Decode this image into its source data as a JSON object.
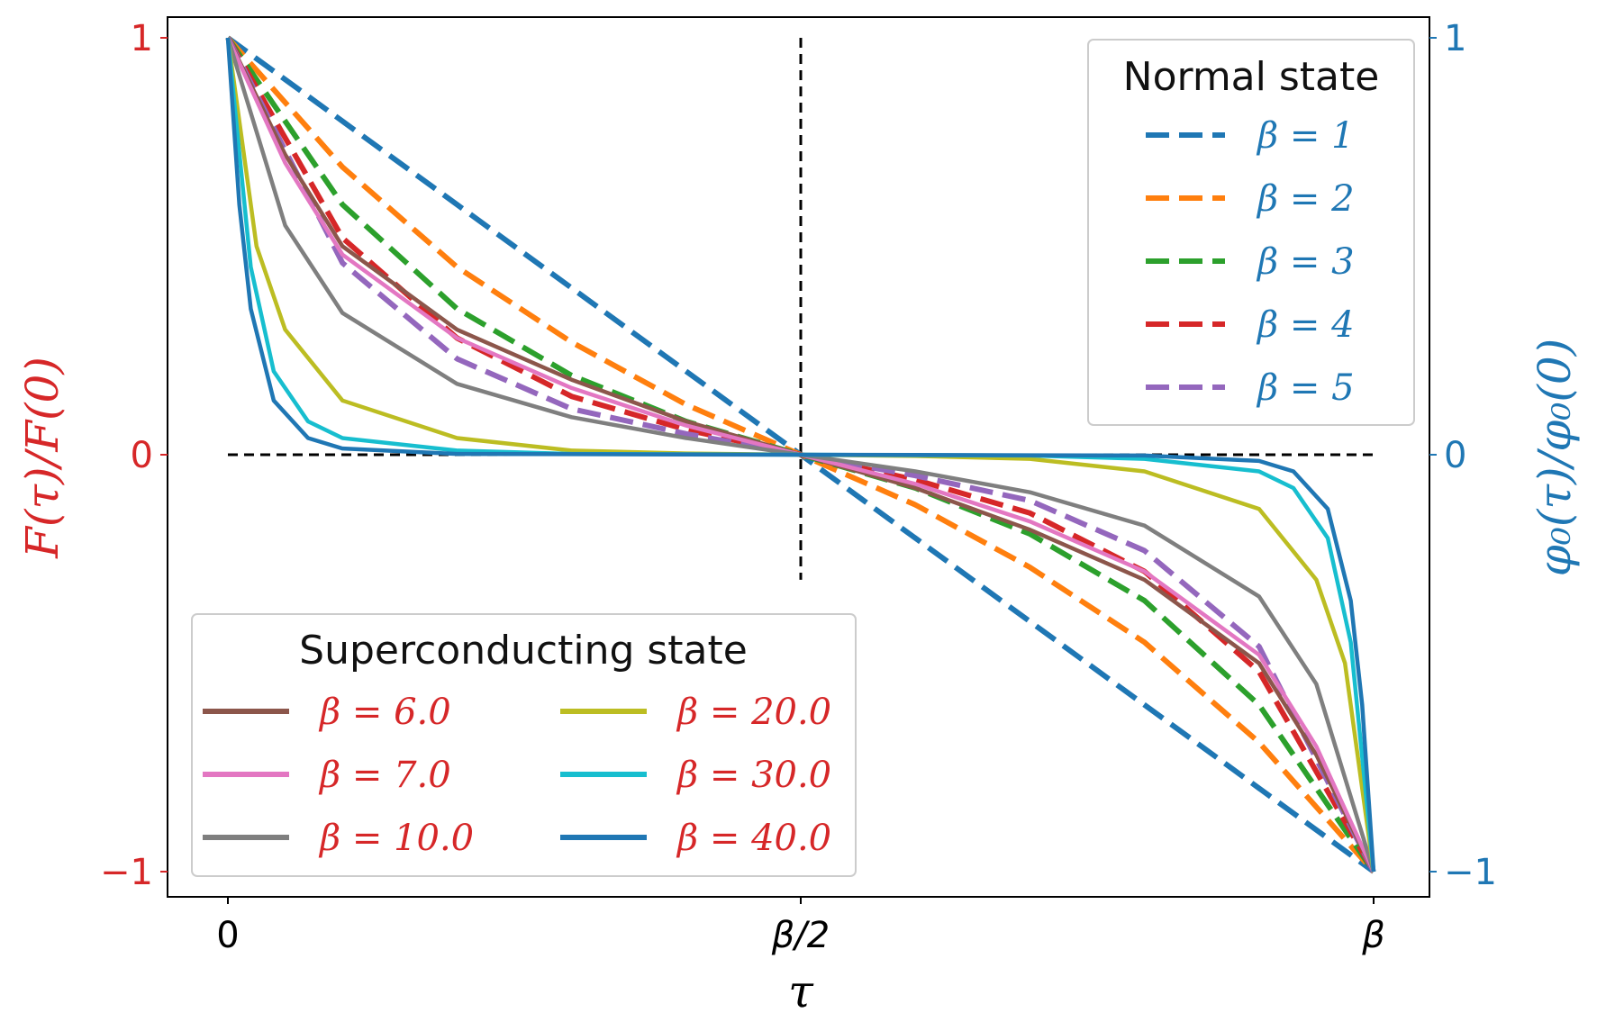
{
  "chart_data": {
    "type": "line",
    "xlabel": "τ",
    "ylabel_left": "F(τ)/F(0)",
    "ylabel_right": "φ₀(τ)/φ₀(0)",
    "x_domain": [
      0,
      1
    ],
    "ylim": [
      -1,
      1
    ],
    "x_ticks": [
      {
        "value": 0,
        "label": "0"
      },
      {
        "value": 0.5,
        "label": "β/2"
      },
      {
        "value": 1,
        "label": "β"
      }
    ],
    "y_ticks_left": [
      {
        "value": 1,
        "label": "1"
      },
      {
        "value": 0,
        "label": "0"
      },
      {
        "value": -1,
        "label": "−1"
      }
    ],
    "y_ticks_right": [
      {
        "value": 1,
        "label": "1"
      },
      {
        "value": 0,
        "label": "0"
      },
      {
        "value": -1,
        "label": "−1"
      }
    ],
    "reference_lines": [
      {
        "orientation": "horizontal",
        "y": 0,
        "x_range": [
          0,
          1
        ]
      },
      {
        "orientation": "vertical",
        "x": 0.5,
        "y_range": [
          -0.3,
          1
        ]
      }
    ],
    "legend_normal": {
      "title": "Normal state",
      "position": "top-right",
      "entries": [
        {
          "label": "β = 1",
          "color": "#1f77b4"
        },
        {
          "label": "β = 2",
          "color": "#ff7f0e"
        },
        {
          "label": "β = 3",
          "color": "#2ca02c"
        },
        {
          "label": "β = 4",
          "color": "#d62728"
        },
        {
          "label": "β = 5",
          "color": "#9467bd"
        }
      ]
    },
    "legend_super": {
      "title": "Superconducting state",
      "position": "bottom-left",
      "entries": [
        {
          "label": "β = 6.0",
          "color": "#8c564b"
        },
        {
          "label": "β = 7.0",
          "color": "#e377c2"
        },
        {
          "label": "β = 10.0",
          "color": "#7f7f7f"
        },
        {
          "label": "β = 20.0",
          "color": "#bcbd22"
        },
        {
          "label": "β = 30.0",
          "color": "#17becf"
        },
        {
          "label": "β = 40.0",
          "color": "#1f77b4"
        }
      ]
    },
    "series": [
      {
        "name": "β = 1",
        "state": "normal",
        "style": "dashed",
        "color": "#1f77b4",
        "x": [
          0,
          0.1,
          0.2,
          0.3,
          0.4,
          0.5,
          0.6,
          0.7,
          0.8,
          0.9,
          1
        ],
        "y": [
          1,
          0.8,
          0.6,
          0.4,
          0.2,
          0,
          -0.2,
          -0.4,
          -0.6,
          -0.8,
          -1
        ]
      },
      {
        "name": "β = 2",
        "state": "normal",
        "style": "dashed",
        "color": "#ff7f0e",
        "x": [
          0,
          0.1,
          0.2,
          0.3,
          0.4,
          0.5,
          0.6,
          0.7,
          0.8,
          0.9,
          1
        ],
        "y": [
          1,
          0.69,
          0.45,
          0.27,
          0.12,
          0,
          -0.12,
          -0.27,
          -0.45,
          -0.69,
          -1
        ]
      },
      {
        "name": "β = 3",
        "state": "normal",
        "style": "dashed",
        "color": "#2ca02c",
        "x": [
          0,
          0.1,
          0.2,
          0.3,
          0.4,
          0.5,
          0.6,
          0.7,
          0.8,
          0.9,
          1
        ],
        "y": [
          1,
          0.6,
          0.35,
          0.19,
          0.08,
          0,
          -0.08,
          -0.19,
          -0.35,
          -0.6,
          -1
        ]
      },
      {
        "name": "β = 4",
        "state": "normal",
        "style": "dashed",
        "color": "#d62728",
        "x": [
          0,
          0.1,
          0.2,
          0.3,
          0.4,
          0.5,
          0.6,
          0.7,
          0.8,
          0.9,
          1
        ],
        "y": [
          1,
          0.52,
          0.28,
          0.14,
          0.06,
          0,
          -0.06,
          -0.14,
          -0.28,
          -0.52,
          -1
        ]
      },
      {
        "name": "β = 5",
        "state": "normal",
        "style": "dashed",
        "color": "#9467bd",
        "x": [
          0,
          0.1,
          0.2,
          0.3,
          0.4,
          0.5,
          0.6,
          0.7,
          0.8,
          0.9,
          1
        ],
        "y": [
          1,
          0.46,
          0.23,
          0.11,
          0.05,
          0,
          -0.05,
          -0.11,
          -0.23,
          -0.46,
          -1
        ]
      },
      {
        "name": "β = 6.0",
        "state": "superconducting",
        "style": "solid",
        "color": "#8c564b",
        "x": [
          0,
          0.05,
          0.1,
          0.2,
          0.3,
          0.4,
          0.5,
          0.6,
          0.7,
          0.8,
          0.9,
          0.95,
          1
        ],
        "y": [
          1,
          0.72,
          0.5,
          0.3,
          0.18,
          0.08,
          0,
          -0.08,
          -0.18,
          -0.3,
          -0.5,
          -0.72,
          -1
        ]
      },
      {
        "name": "β = 7.0",
        "state": "superconducting",
        "style": "solid",
        "color": "#e377c2",
        "x": [
          0,
          0.05,
          0.1,
          0.2,
          0.3,
          0.4,
          0.5,
          0.6,
          0.7,
          0.8,
          0.9,
          0.95,
          1
        ],
        "y": [
          1,
          0.7,
          0.48,
          0.28,
          0.16,
          0.07,
          0,
          -0.07,
          -0.16,
          -0.28,
          -0.48,
          -0.7,
          -1
        ]
      },
      {
        "name": "β = 10.0",
        "state": "superconducting",
        "style": "solid",
        "color": "#7f7f7f",
        "x": [
          0,
          0.05,
          0.1,
          0.2,
          0.3,
          0.4,
          0.5,
          0.6,
          0.7,
          0.8,
          0.9,
          0.95,
          1
        ],
        "y": [
          1,
          0.55,
          0.34,
          0.17,
          0.09,
          0.04,
          0,
          -0.04,
          -0.09,
          -0.17,
          -0.34,
          -0.55,
          -1
        ]
      },
      {
        "name": "β = 20.0",
        "state": "superconducting",
        "style": "solid",
        "color": "#bcbd22",
        "x": [
          0,
          0.025,
          0.05,
          0.1,
          0.2,
          0.3,
          0.4,
          0.5,
          0.6,
          0.7,
          0.8,
          0.9,
          0.95,
          0.975,
          1
        ],
        "y": [
          1,
          0.5,
          0.3,
          0.13,
          0.04,
          0.01,
          0.003,
          0,
          -0.003,
          -0.01,
          -0.04,
          -0.13,
          -0.3,
          -0.5,
          -1
        ]
      },
      {
        "name": "β = 30.0",
        "state": "superconducting",
        "style": "solid",
        "color": "#17becf",
        "x": [
          0,
          0.02,
          0.04,
          0.07,
          0.1,
          0.2,
          0.3,
          0.5,
          0.7,
          0.8,
          0.9,
          0.93,
          0.96,
          0.98,
          1
        ],
        "y": [
          1,
          0.45,
          0.2,
          0.08,
          0.04,
          0.01,
          0.002,
          0,
          -0.002,
          -0.01,
          -0.04,
          -0.08,
          -0.2,
          -0.45,
          -1
        ]
      },
      {
        "name": "β = 40.0",
        "state": "superconducting",
        "style": "solid",
        "color": "#1f77b4",
        "x": [
          0,
          0.01,
          0.02,
          0.04,
          0.07,
          0.1,
          0.2,
          0.5,
          0.8,
          0.9,
          0.93,
          0.96,
          0.98,
          0.99,
          1
        ],
        "y": [
          1,
          0.6,
          0.35,
          0.13,
          0.04,
          0.015,
          0.002,
          0,
          -0.002,
          -0.015,
          -0.04,
          -0.13,
          -0.35,
          -0.6,
          -1
        ]
      }
    ]
  },
  "colors": {
    "left_axis": "#d62728",
    "right_axis": "#1f77b4",
    "frame": "#000000",
    "reference": "#000000"
  }
}
